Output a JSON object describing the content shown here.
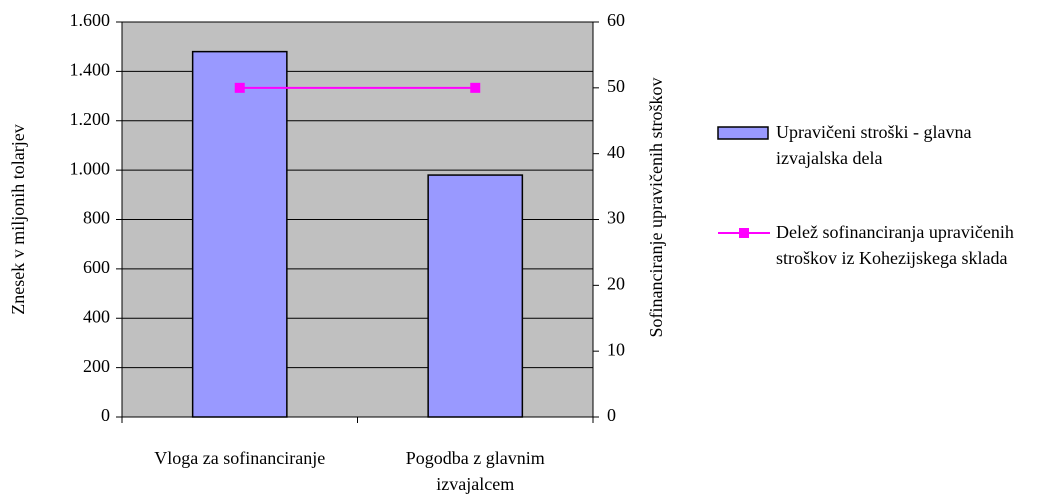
{
  "chart_data": {
    "type": "bar",
    "categories": [
      "Vloga za sofinanciranje",
      "Pogodba z glavnim izvajalcem"
    ],
    "series": [
      {
        "name": "Upravičeni stroški - glavna izvajalska dela",
        "type": "bar",
        "color": "#9999ff",
        "values": [
          1480,
          980
        ]
      },
      {
        "name": "Delež sofinanciranja upravičenih stroškov iz Kohezijskega sklada",
        "type": "line",
        "axis": "y2",
        "color": "#ff00ff",
        "values": [
          50,
          50
        ]
      }
    ],
    "ylabel": "Znesek v miljonih tolarjev",
    "y2label": "Sofinanciranje upravičenih stroškov",
    "ylim": [
      0,
      1600
    ],
    "yticks": [
      0,
      200,
      400,
      600,
      800,
      {
        "value": 1000,
        "label": "1.000"
      },
      {
        "value": 1200,
        "label": "1.200"
      },
      {
        "value": 1400,
        "label": "1.400"
      },
      {
        "value": 1600,
        "label": "1.600"
      }
    ],
    "y2lim": [
      0,
      60
    ],
    "y2ticks": [
      0,
      10,
      20,
      30,
      40,
      50,
      60
    ],
    "grid": true,
    "plot_background": "#c0c0c0",
    "legend": "right"
  }
}
